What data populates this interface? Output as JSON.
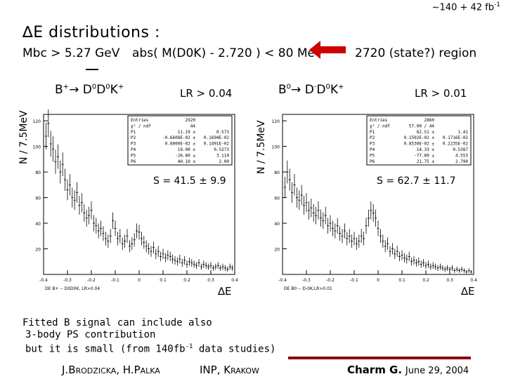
{
  "header": {
    "luminosity": "~140 + 42 fb",
    "luminosity_sup": "-1",
    "title_delta": "∆",
    "title_rest": "E distributions :",
    "cut_mbc": "Mbc > 5.27 GeV",
    "cut_mass": "abs( M(D0K) - 2.720 ) < 80 MeV",
    "region": "2720 (state?) region",
    "arrow_color": "#cc0000"
  },
  "panels": [
    {
      "reaction": "B+→ D0D0K+",
      "reaction_parts": {
        "a": "B",
        "a_sup": "+",
        "arrow": "→",
        "b": "D",
        "b_sup": "0",
        "c": "D",
        "c_sup": "0",
        "d": "K",
        "d_sup": "+"
      },
      "lr": "LR > 0.04",
      "ylabel": "N / 7.5MeV",
      "signal_label": "S = 41.5 ± 9.9",
      "xlabel": "∆E",
      "hist_title": "DE B+ -- D0D0K, LR>0.04",
      "stats": [
        [
          "Entries",
          "2920"
        ],
        [
          "χ² / ndf",
          "44"
        ],
        [
          "P1",
          "11.19 ±",
          "0.573"
        ],
        [
          "P2",
          "-0.6608E-02 ±",
          "0.1694E-02"
        ],
        [
          "P3",
          "0.8000E-02 ±",
          "0.1491E-02"
        ],
        [
          "P4",
          "19.00 ±",
          "0.5273"
        ],
        [
          "P5",
          "-26.80 ±",
          "3.110"
        ],
        [
          "P6",
          "40.10 ±",
          "2.00"
        ]
      ]
    },
    {
      "reaction": "B0→ D-D0K+",
      "reaction_parts": {
        "a": "B",
        "a_sup": "0",
        "arrow": "→",
        "b": "D",
        "b_sup": "-",
        "c": "D",
        "c_sup": "0",
        "d": "K",
        "d_sup": "+"
      },
      "lr": "LR > 0.01",
      "ylabel": "N / 7.5MeV",
      "signal_label": "S = 62.7 ± 11.7",
      "xlabel": "∆E",
      "hist_title": "DE B0 -- D-0K,LR>0.01",
      "stats": [
        [
          "Entries",
          "2860"
        ],
        [
          "χ² / ndf",
          "57.00 / 44"
        ],
        [
          "P1",
          "82.51 ±",
          "1.41"
        ],
        [
          "P2",
          "0.1592E-02 ±",
          "0.1716E-02"
        ],
        [
          "P3",
          "0.8530E-02 ±",
          "0.2235E-02"
        ],
        [
          "P4",
          "14.33 ±",
          "0.5387"
        ],
        [
          "P5",
          "-77.89 ±",
          "4.553"
        ],
        [
          "P6",
          "21.75 ±",
          "2.790"
        ]
      ]
    }
  ],
  "chart_data": [
    {
      "type": "scatter",
      "title": "",
      "xlabel": "∆E",
      "ylabel": "N / 7.5MeV",
      "xlim": [
        -0.4,
        0.4
      ],
      "ylim": [
        0,
        125
      ],
      "xticks": [
        "-0.4",
        "-0.3",
        "-0.2",
        "-0.1",
        "0",
        "0.1",
        "0.2",
        "0.3",
        "0.4"
      ],
      "yticks": [
        20,
        40,
        60,
        80,
        100,
        120
      ],
      "series": [
        {
          "x": [
            -0.39,
            -0.38,
            -0.37,
            -0.36,
            -0.35,
            -0.34,
            -0.33,
            -0.32,
            -0.31,
            -0.3,
            -0.29,
            -0.28,
            -0.27,
            -0.26,
            -0.25,
            -0.24,
            -0.23,
            -0.22,
            -0.21,
            -0.2,
            -0.19,
            -0.18,
            -0.17,
            -0.16,
            -0.15,
            -0.14,
            -0.13,
            -0.12,
            -0.11,
            -0.1,
            -0.09,
            -0.08,
            -0.07,
            -0.06,
            -0.05,
            -0.04,
            -0.03,
            -0.02,
            -0.01,
            0.0,
            0.01,
            0.02,
            0.03,
            0.04,
            0.05,
            0.06,
            0.07,
            0.08,
            0.09,
            0.1,
            0.11,
            0.12,
            0.13,
            0.14,
            0.15,
            0.16,
            0.17,
            0.18,
            0.19,
            0.2,
            0.21,
            0.22,
            0.23,
            0.24,
            0.25,
            0.26,
            0.27,
            0.28,
            0.29,
            0.3,
            0.31,
            0.32,
            0.33,
            0.34,
            0.35,
            0.36,
            0.37,
            0.38,
            0.39
          ],
          "y": [
            108,
            118,
            102,
            98,
            88,
            92,
            80,
            86,
            74,
            66,
            70,
            60,
            58,
            64,
            54,
            56,
            48,
            44,
            46,
            50,
            40,
            38,
            34,
            36,
            32,
            28,
            26,
            30,
            42,
            36,
            28,
            30,
            24,
            26,
            30,
            22,
            24,
            27,
            34,
            33,
            28,
            25,
            22,
            20,
            18,
            21,
            16,
            18,
            14,
            16,
            13,
            15,
            14,
            12,
            11,
            10,
            12,
            9,
            11,
            8,
            10,
            9,
            8,
            7,
            9,
            6,
            8,
            7,
            6,
            7,
            5,
            6,
            7,
            5,
            6,
            5,
            4,
            6,
            5
          ]
        }
      ]
    },
    {
      "type": "scatter",
      "title": "",
      "xlabel": "∆E",
      "ylabel": "N / 7.5MeV",
      "xlim": [
        -0.4,
        0.4
      ],
      "ylim": [
        0,
        125
      ],
      "xticks": [
        "-0.4",
        "-0.3",
        "-0.2",
        "-0.1",
        "0",
        "0.1",
        "0.2",
        "0.3",
        "0.4"
      ],
      "yticks": [
        20,
        40,
        60,
        80,
        100,
        120
      ],
      "series": [
        {
          "x": [
            -0.39,
            -0.38,
            -0.37,
            -0.36,
            -0.35,
            -0.34,
            -0.33,
            -0.32,
            -0.31,
            -0.3,
            -0.29,
            -0.28,
            -0.27,
            -0.26,
            -0.25,
            -0.24,
            -0.23,
            -0.22,
            -0.21,
            -0.2,
            -0.19,
            -0.18,
            -0.17,
            -0.16,
            -0.15,
            -0.14,
            -0.13,
            -0.12,
            -0.11,
            -0.1,
            -0.09,
            -0.08,
            -0.07,
            -0.06,
            -0.05,
            -0.04,
            -0.03,
            -0.02,
            -0.01,
            0.0,
            0.01,
            0.02,
            0.03,
            0.04,
            0.05,
            0.06,
            0.07,
            0.08,
            0.09,
            0.1,
            0.11,
            0.12,
            0.13,
            0.14,
            0.15,
            0.16,
            0.17,
            0.18,
            0.19,
            0.2,
            0.21,
            0.22,
            0.23,
            0.24,
            0.25,
            0.26,
            0.27,
            0.28,
            0.29,
            0.3,
            0.31,
            0.32,
            0.33,
            0.34,
            0.35,
            0.36,
            0.37,
            0.38,
            0.39
          ],
          "y": [
            68,
            80,
            74,
            64,
            70,
            60,
            58,
            62,
            54,
            56,
            50,
            52,
            48,
            46,
            50,
            44,
            42,
            46,
            38,
            40,
            36,
            34,
            38,
            32,
            30,
            34,
            28,
            30,
            26,
            28,
            24,
            26,
            30,
            28,
            38,
            44,
            50,
            48,
            44,
            36,
            30,
            26,
            22,
            24,
            18,
            20,
            16,
            18,
            14,
            15,
            13,
            12,
            14,
            10,
            11,
            9,
            10,
            8,
            9,
            7,
            8,
            6,
            7,
            6,
            5,
            6,
            5,
            4,
            5,
            4,
            5,
            3,
            4,
            3,
            4,
            3,
            2,
            3,
            2
          ]
        }
      ]
    }
  ],
  "notes": {
    "line1": "Fitted B signal can include also",
    "line2": "3-body PS contribution",
    "line3": "but it is small (from 140fb",
    "line3_sup": "-1",
    "line3_end": " data studies)"
  },
  "footer": {
    "authors": "J.Brodzicka, H.Palka",
    "institute": "INP, Krakow",
    "conference": "Charm G.",
    "date": "June 29, 2004",
    "bar_color": "#8a0010"
  }
}
